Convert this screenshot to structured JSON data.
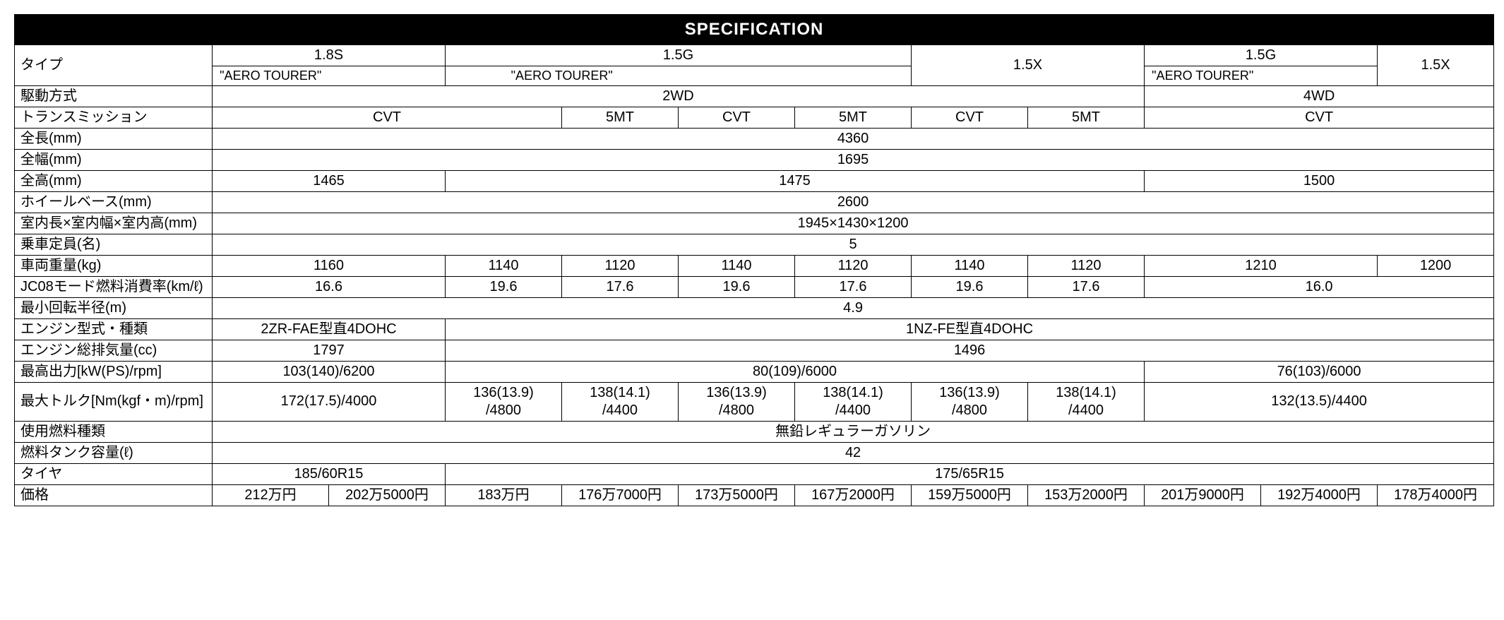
{
  "title": "SPECIFICATION",
  "labels": {
    "type": "タイプ",
    "drive": "駆動方式",
    "trans": "トランスミッション",
    "length": "全長(mm)",
    "width": "全幅(mm)",
    "height": "全高(mm)",
    "wheelbase": "ホイールベース(mm)",
    "interior": "室内長×室内幅×室内高(mm)",
    "seats": "乗車定員(名)",
    "weight": "車両重量(kg)",
    "fuel_eco": "JC08モード燃料消費率(km/ℓ)",
    "turn_radius": "最小回転半径(m)",
    "engine": "エンジン型式・種類",
    "disp": "エンジン総排気量(cc)",
    "power": "最高出力[kW(PS)/rpm]",
    "torque": "最大トルク[Nm(kgf・m)/rpm]",
    "fuel_type": "使用燃料種類",
    "tank": "燃料タンク容量(ℓ)",
    "tire": "タイヤ",
    "price": "価格"
  },
  "header": {
    "g18s": "1.8S",
    "g15g": "1.5G",
    "g15x": "1.5X",
    "aero": "\"AERO TOURER\""
  },
  "drive": {
    "twd": "2WD",
    "fwd": "4WD"
  },
  "trans": {
    "cvt": "CVT",
    "mt5": "5MT"
  },
  "length": "4360",
  "width": "1695",
  "height": {
    "a": "1465",
    "b": "1475",
    "c": "1500"
  },
  "wheelbase": "2600",
  "interior": "1945×1430×1200",
  "seats": "5",
  "weight": {
    "a": "1160",
    "b": "1140",
    "c": "1120",
    "d": "1140",
    "e": "1120",
    "f": "1140",
    "g": "1120",
    "h": "1210",
    "i": "1200"
  },
  "fuel_eco": {
    "a": "16.6",
    "b": "19.6",
    "c": "17.6",
    "d": "19.6",
    "e": "17.6",
    "f": "19.6",
    "g": "17.6",
    "h": "16.0"
  },
  "turn_radius": "4.9",
  "engine": {
    "a": "2ZR-FAE型直4DOHC",
    "b": "1NZ-FE型直4DOHC"
  },
  "disp": {
    "a": "1797",
    "b": "1496"
  },
  "power": {
    "a": "103(140)/6200",
    "b": "80(109)/6000",
    "c": "76(103)/6000"
  },
  "torque": {
    "a": "172(17.5)/4000",
    "b": "136(13.9)\n/4800",
    "c": "138(14.1)\n/4400",
    "d": "136(13.9)\n/4800",
    "e": "138(14.1)\n/4400",
    "f": "136(13.9)\n/4800",
    "g": "138(14.1)\n/4400",
    "h": "132(13.5)/4400"
  },
  "fuel_type": "無鉛レギュラーガソリン",
  "tank": "42",
  "tire": {
    "a": "185/60R15",
    "b": "175/65R15"
  },
  "price": {
    "a": "212万円",
    "b": "202万5000円",
    "c": "183万円",
    "d": "176万7000円",
    "e": "173万5000円",
    "f": "167万2000円",
    "g": "159万5000円",
    "h": "153万2000円",
    "i": "201万9000円",
    "j": "192万4000円",
    "k": "178万4000円"
  }
}
